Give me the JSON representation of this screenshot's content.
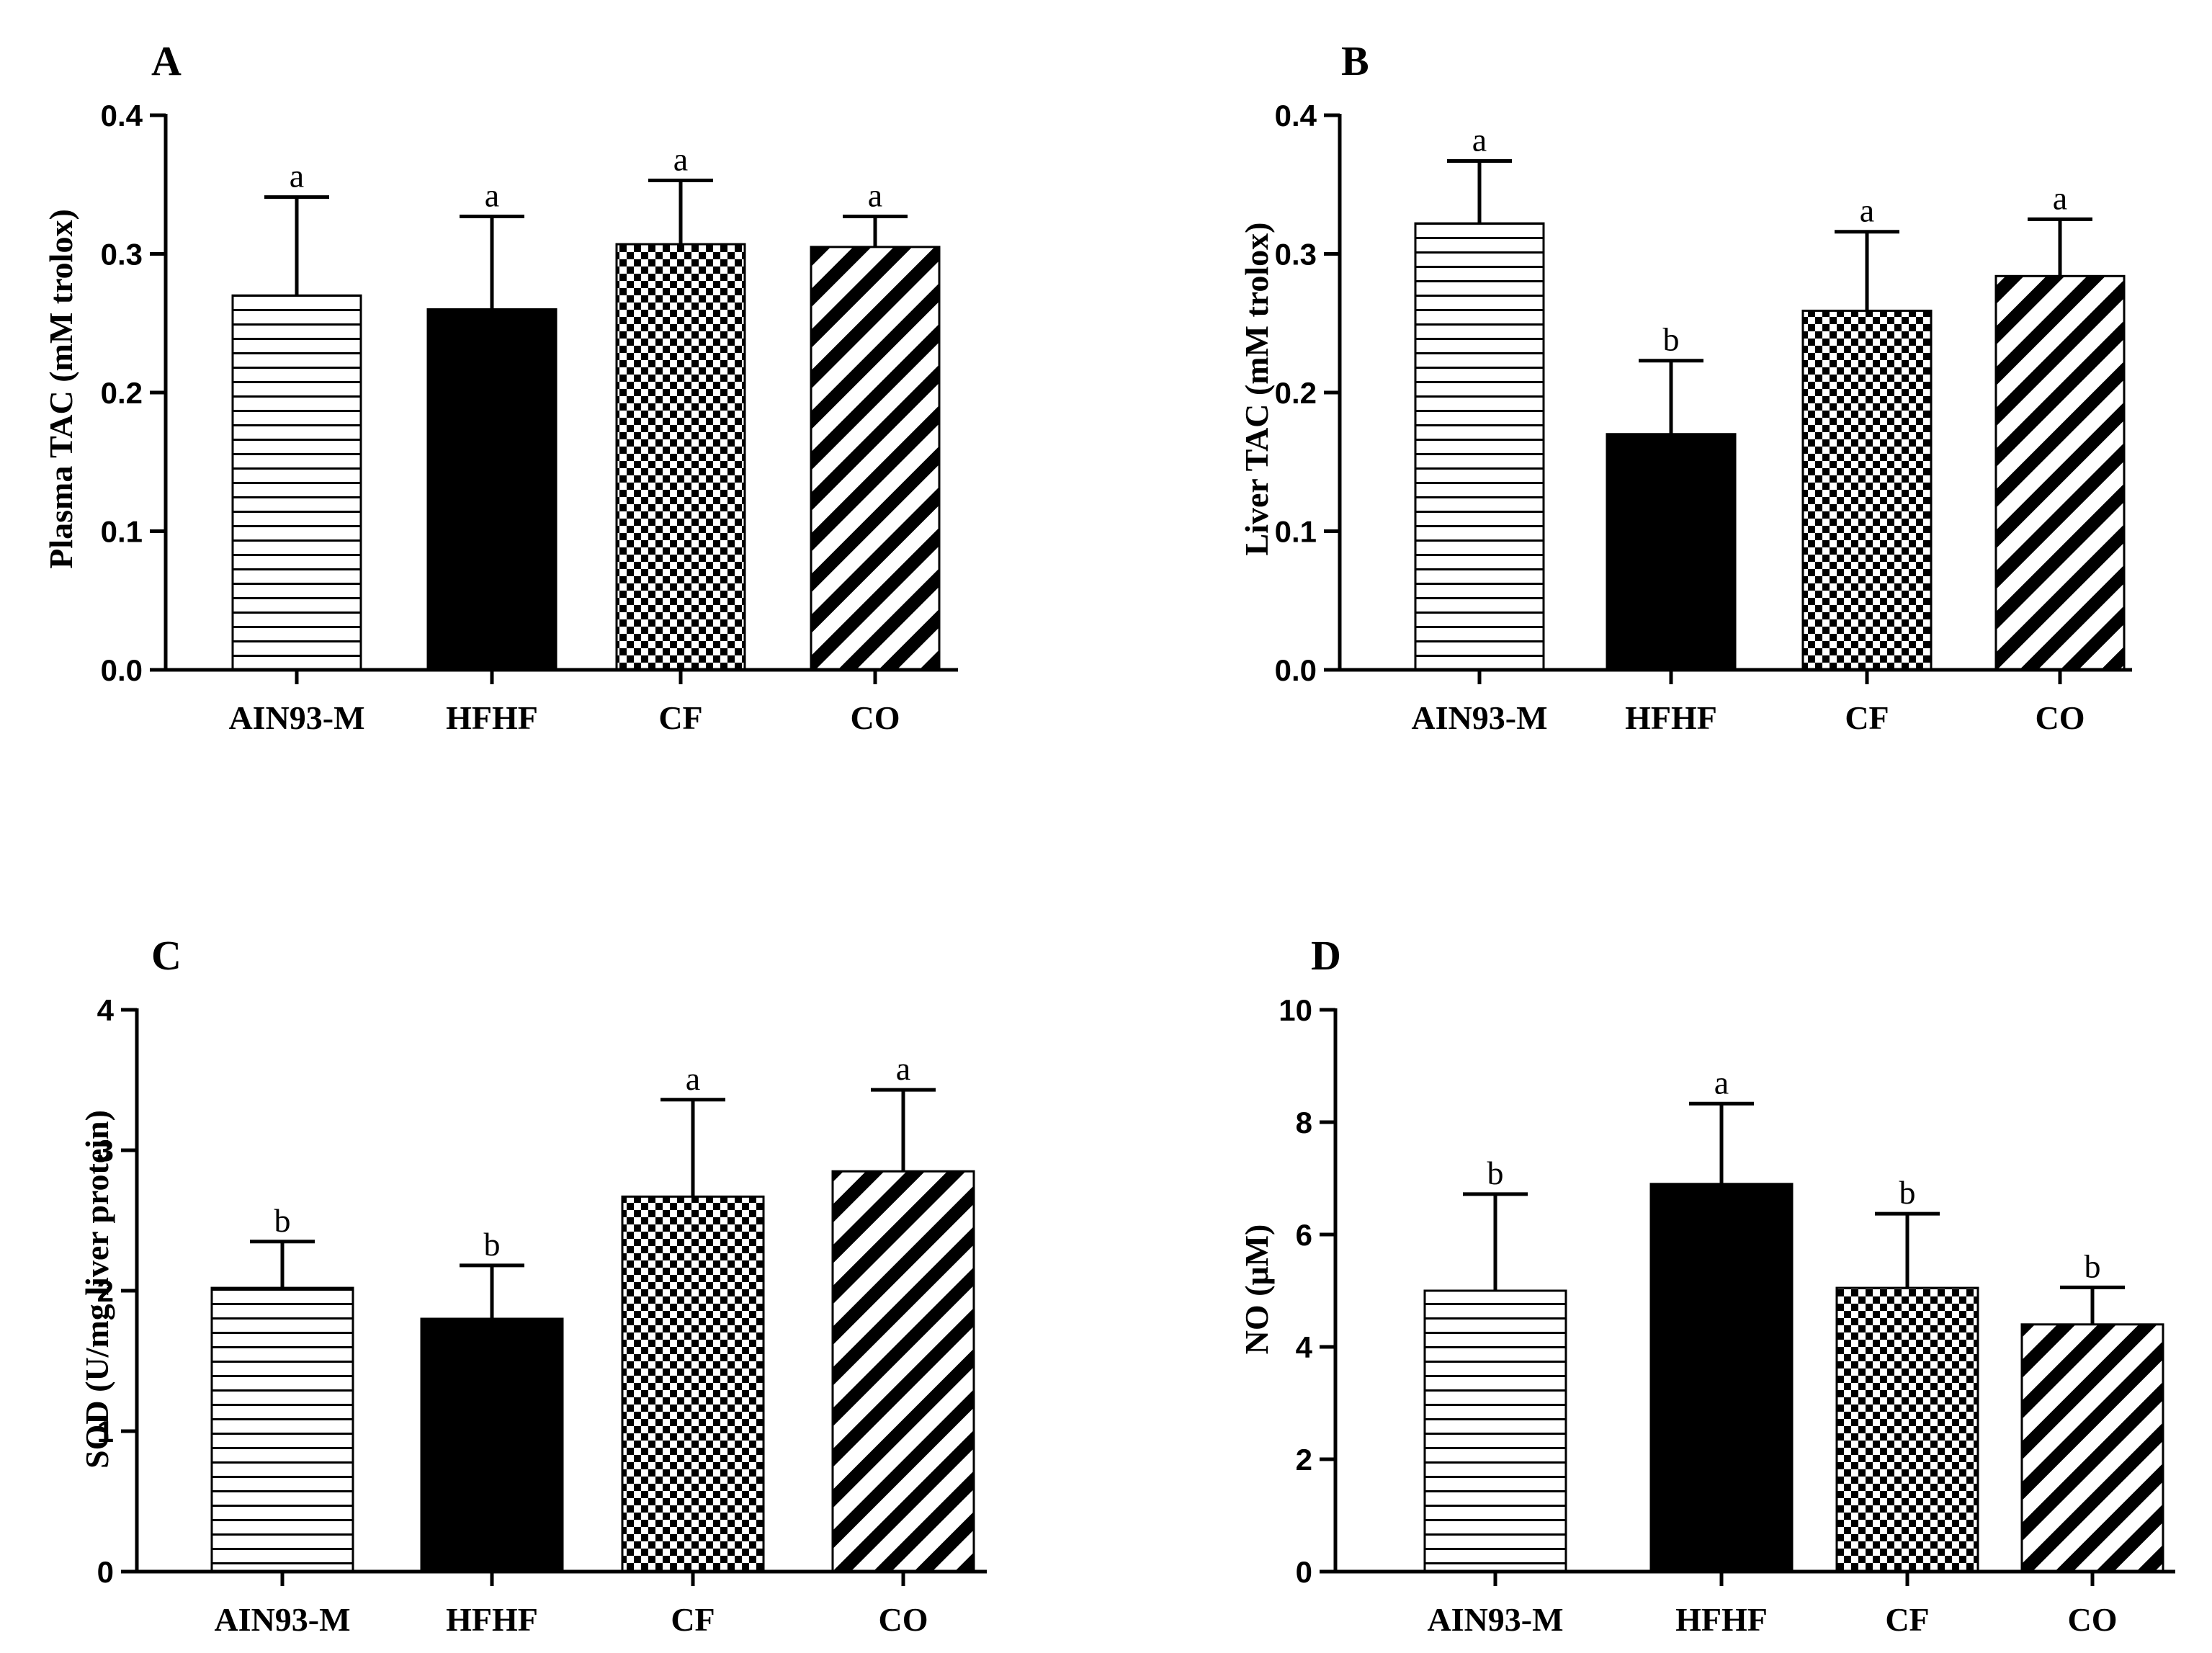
{
  "figure": {
    "colors": {
      "ink": "#000000",
      "background": "#ffffff"
    }
  },
  "chart_data": [
    {
      "type": "bar",
      "panel": "A",
      "ylabel": "Plasma TAC  (mM trolox)",
      "xlabel": "",
      "ylim": [
        0,
        0.4
      ],
      "yticks": [
        0.0,
        0.1,
        0.2,
        0.3,
        0.4
      ],
      "ytick_labels": [
        "0.0",
        "0.1",
        "0.2",
        "0.3",
        "0.4"
      ],
      "categories": [
        "AIN93-M",
        "HFHF",
        "CF",
        "CO"
      ],
      "patterns": [
        "horizontal-lines",
        "solid-black",
        "checkerboard",
        "diagonal-stripes"
      ],
      "values": [
        0.27,
        0.26,
        0.307,
        0.305
      ],
      "errors": [
        0.071,
        0.067,
        0.046,
        0.022
      ],
      "significance": [
        "a",
        "a",
        "a",
        "a"
      ]
    },
    {
      "type": "bar",
      "panel": "B",
      "ylabel": "Liver TAC  (mM trolox)",
      "xlabel": "",
      "ylim": [
        0,
        0.4
      ],
      "yticks": [
        0.0,
        0.1,
        0.2,
        0.3,
        0.4
      ],
      "ytick_labels": [
        "0.0",
        "0.1",
        "0.2",
        "0.3",
        "0.4"
      ],
      "categories": [
        "AIN93-M",
        "HFHF",
        "CF",
        "CO"
      ],
      "patterns": [
        "horizontal-lines",
        "solid-black",
        "checkerboard",
        "diagonal-stripes"
      ],
      "values": [
        0.322,
        0.17,
        0.259,
        0.284
      ],
      "errors": [
        0.045,
        0.053,
        0.057,
        0.041
      ],
      "significance": [
        "a",
        "b",
        "a",
        "a"
      ]
    },
    {
      "type": "bar",
      "panel": "C",
      "ylabel": "SOD (U/mg liver protein)",
      "xlabel": "",
      "ylim": [
        0,
        4
      ],
      "yticks": [
        0,
        1,
        2,
        3,
        4
      ],
      "ytick_labels": [
        "0",
        "1",
        "2",
        "3",
        "4"
      ],
      "categories": [
        "AIN93-M",
        "HFHF",
        "CF",
        "CO"
      ],
      "patterns": [
        "horizontal-lines",
        "solid-black",
        "checkerboard",
        "diagonal-stripes"
      ],
      "values": [
        2.02,
        1.8,
        2.67,
        2.85
      ],
      "errors": [
        0.33,
        0.38,
        0.69,
        0.58
      ],
      "significance": [
        "b",
        "b",
        "a",
        "a"
      ]
    },
    {
      "type": "bar",
      "panel": "D",
      "ylabel": "NO (μM)",
      "xlabel": "",
      "ylim": [
        0,
        10
      ],
      "yticks": [
        0,
        2,
        4,
        6,
        8,
        10
      ],
      "ytick_labels": [
        "0",
        "2",
        "4",
        "6",
        "8",
        "10"
      ],
      "categories": [
        "AIN93-M",
        "HFHF",
        "CF",
        "CO"
      ],
      "patterns": [
        "horizontal-lines",
        "solid-black",
        "checkerboard",
        "diagonal-stripes"
      ],
      "values": [
        5.0,
        6.9,
        5.05,
        4.4
      ],
      "errors": [
        1.72,
        1.43,
        1.32,
        0.66
      ],
      "significance": [
        "b",
        "a",
        "b",
        "b"
      ]
    }
  ]
}
